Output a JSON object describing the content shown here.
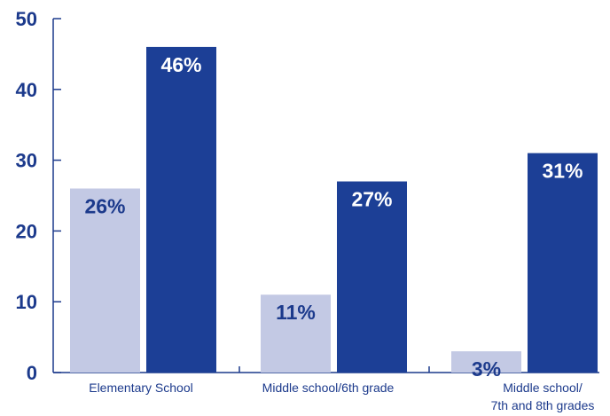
{
  "chart_data": {
    "type": "bar",
    "categories": [
      [
        "Elementary School"
      ],
      [
        "Middle school/6th grade"
      ],
      [
        "Middle school/",
        "7th and 8th grades"
      ]
    ],
    "series": [
      {
        "values": [
          26,
          11,
          3
        ],
        "labels": [
          "26%",
          "11%",
          "3%"
        ],
        "color": "#c3c9e4",
        "label_color": "#1c3a8c"
      },
      {
        "values": [
          46,
          27,
          31
        ],
        "labels": [
          "46%",
          "27%",
          "31%"
        ],
        "color": "#1c3f96",
        "label_color": "#ffffff"
      }
    ],
    "ylim": [
      0,
      50
    ],
    "yticks": [
      0,
      10,
      20,
      30,
      40,
      50
    ],
    "title": "",
    "xlabel": "",
    "ylabel": "",
    "grid": false,
    "axis_color": "#1c3a8c",
    "tick_label_color": "#1c3a8c",
    "category_label_color": "#1c3a8c"
  }
}
